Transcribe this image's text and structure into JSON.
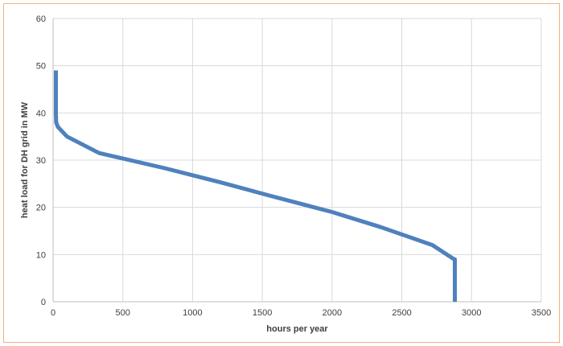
{
  "chart_data": {
    "type": "line",
    "title": "",
    "xlabel": "hours per year",
    "ylabel": "heat load for DH grid in MW",
    "xlim": [
      0,
      3500
    ],
    "ylim": [
      0,
      60
    ],
    "x_ticks": [
      0,
      500,
      1000,
      1500,
      2000,
      2500,
      3000,
      3500
    ],
    "y_ticks": [
      0,
      10,
      20,
      30,
      40,
      50,
      60
    ],
    "grid": true,
    "legend": "none",
    "series": [
      {
        "color": "#4f81bd",
        "x": [
          20,
          20,
          22,
          35,
          100,
          330,
          800,
          1200,
          1550,
          2000,
          2350,
          2720,
          2875,
          2880,
          2880
        ],
        "y": [
          49,
          40,
          38,
          37,
          35,
          31.5,
          28.3,
          25.3,
          22.5,
          19,
          15.8,
          12,
          9,
          9,
          0
        ]
      }
    ]
  }
}
